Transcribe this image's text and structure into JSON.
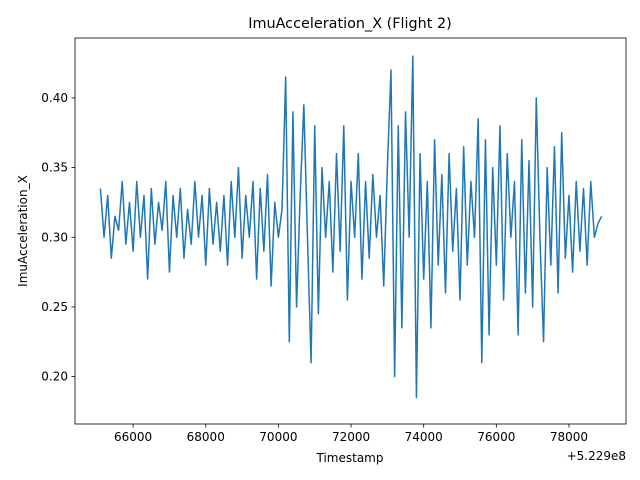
{
  "chart_data": {
    "type": "line",
    "title": "ImuAcceleration_X (Flight 2)",
    "xlabel": "Timestamp",
    "ylabel": "ImuAcceleration_X",
    "x_offset_label": "+5.229e8",
    "x": [
      65100,
      65200,
      65300,
      65400,
      65500,
      65600,
      65700,
      65800,
      65900,
      66000,
      66100,
      66200,
      66300,
      66400,
      66500,
      66600,
      66700,
      66800,
      66900,
      67000,
      67100,
      67200,
      67300,
      67400,
      67500,
      67600,
      67700,
      67800,
      67900,
      68000,
      68100,
      68200,
      68300,
      68400,
      68500,
      68600,
      68700,
      68800,
      68900,
      69000,
      69100,
      69200,
      69300,
      69400,
      69500,
      69600,
      69700,
      69800,
      69900,
      70000,
      70100,
      70200,
      70300,
      70400,
      70500,
      70600,
      70700,
      70800,
      70900,
      71000,
      71100,
      71200,
      71300,
      71400,
      71500,
      71600,
      71700,
      71800,
      71900,
      72000,
      72100,
      72200,
      72300,
      72400,
      72500,
      72600,
      72700,
      72800,
      72900,
      73000,
      73100,
      73200,
      73300,
      73400,
      73500,
      73600,
      73700,
      73800,
      73900,
      74000,
      74100,
      74200,
      74300,
      74400,
      74500,
      74600,
      74700,
      74800,
      74900,
      75000,
      75100,
      75200,
      75300,
      75400,
      75500,
      75600,
      75700,
      75800,
      75900,
      76000,
      76100,
      76200,
      76300,
      76400,
      76500,
      76600,
      76700,
      76800,
      76900,
      77000,
      77100,
      77200,
      77300,
      77400,
      77500,
      77600,
      77700,
      77800,
      77900,
      78000,
      78100,
      78200,
      78300,
      78400,
      78500,
      78600,
      78700,
      78800,
      78900
    ],
    "series": [
      {
        "name": "ImuAcceleration_X",
        "color": "#1f77b4",
        "values": [
          0.335,
          0.3,
          0.33,
          0.285,
          0.315,
          0.305,
          0.34,
          0.295,
          0.325,
          0.29,
          0.34,
          0.3,
          0.33,
          0.27,
          0.335,
          0.295,
          0.325,
          0.305,
          0.34,
          0.275,
          0.33,
          0.3,
          0.335,
          0.285,
          0.32,
          0.295,
          0.34,
          0.3,
          0.33,
          0.28,
          0.335,
          0.295,
          0.325,
          0.29,
          0.33,
          0.28,
          0.34,
          0.3,
          0.35,
          0.285,
          0.33,
          0.3,
          0.34,
          0.27,
          0.335,
          0.29,
          0.345,
          0.265,
          0.325,
          0.3,
          0.32,
          0.415,
          0.225,
          0.39,
          0.25,
          0.33,
          0.395,
          0.3,
          0.21,
          0.38,
          0.245,
          0.35,
          0.3,
          0.34,
          0.275,
          0.36,
          0.29,
          0.38,
          0.255,
          0.34,
          0.3,
          0.36,
          0.27,
          0.34,
          0.285,
          0.345,
          0.3,
          0.33,
          0.265,
          0.35,
          0.42,
          0.2,
          0.38,
          0.235,
          0.39,
          0.3,
          0.43,
          0.185,
          0.36,
          0.27,
          0.34,
          0.235,
          0.37,
          0.28,
          0.345,
          0.26,
          0.36,
          0.29,
          0.335,
          0.255,
          0.365,
          0.28,
          0.34,
          0.3,
          0.385,
          0.21,
          0.37,
          0.23,
          0.35,
          0.28,
          0.38,
          0.255,
          0.36,
          0.3,
          0.34,
          0.23,
          0.37,
          0.26,
          0.355,
          0.25,
          0.4,
          0.3,
          0.225,
          0.35,
          0.28,
          0.365,
          0.26,
          0.375,
          0.285,
          0.33,
          0.275,
          0.34,
          0.29,
          0.335,
          0.28,
          0.34,
          0.3,
          0.31,
          0.315
        ]
      }
    ],
    "xlim": [
      64400,
      79570
    ],
    "ylim": [
      0.166,
      0.443
    ],
    "xticks": [
      66000,
      68000,
      70000,
      72000,
      74000,
      76000,
      78000
    ],
    "yticks": [
      {
        "value": 0.2,
        "label": "0.20"
      },
      {
        "value": 0.25,
        "label": "0.25"
      },
      {
        "value": 0.3,
        "label": "0.30"
      },
      {
        "value": 0.35,
        "label": "0.35"
      },
      {
        "value": 0.4,
        "label": "0.40"
      }
    ]
  }
}
